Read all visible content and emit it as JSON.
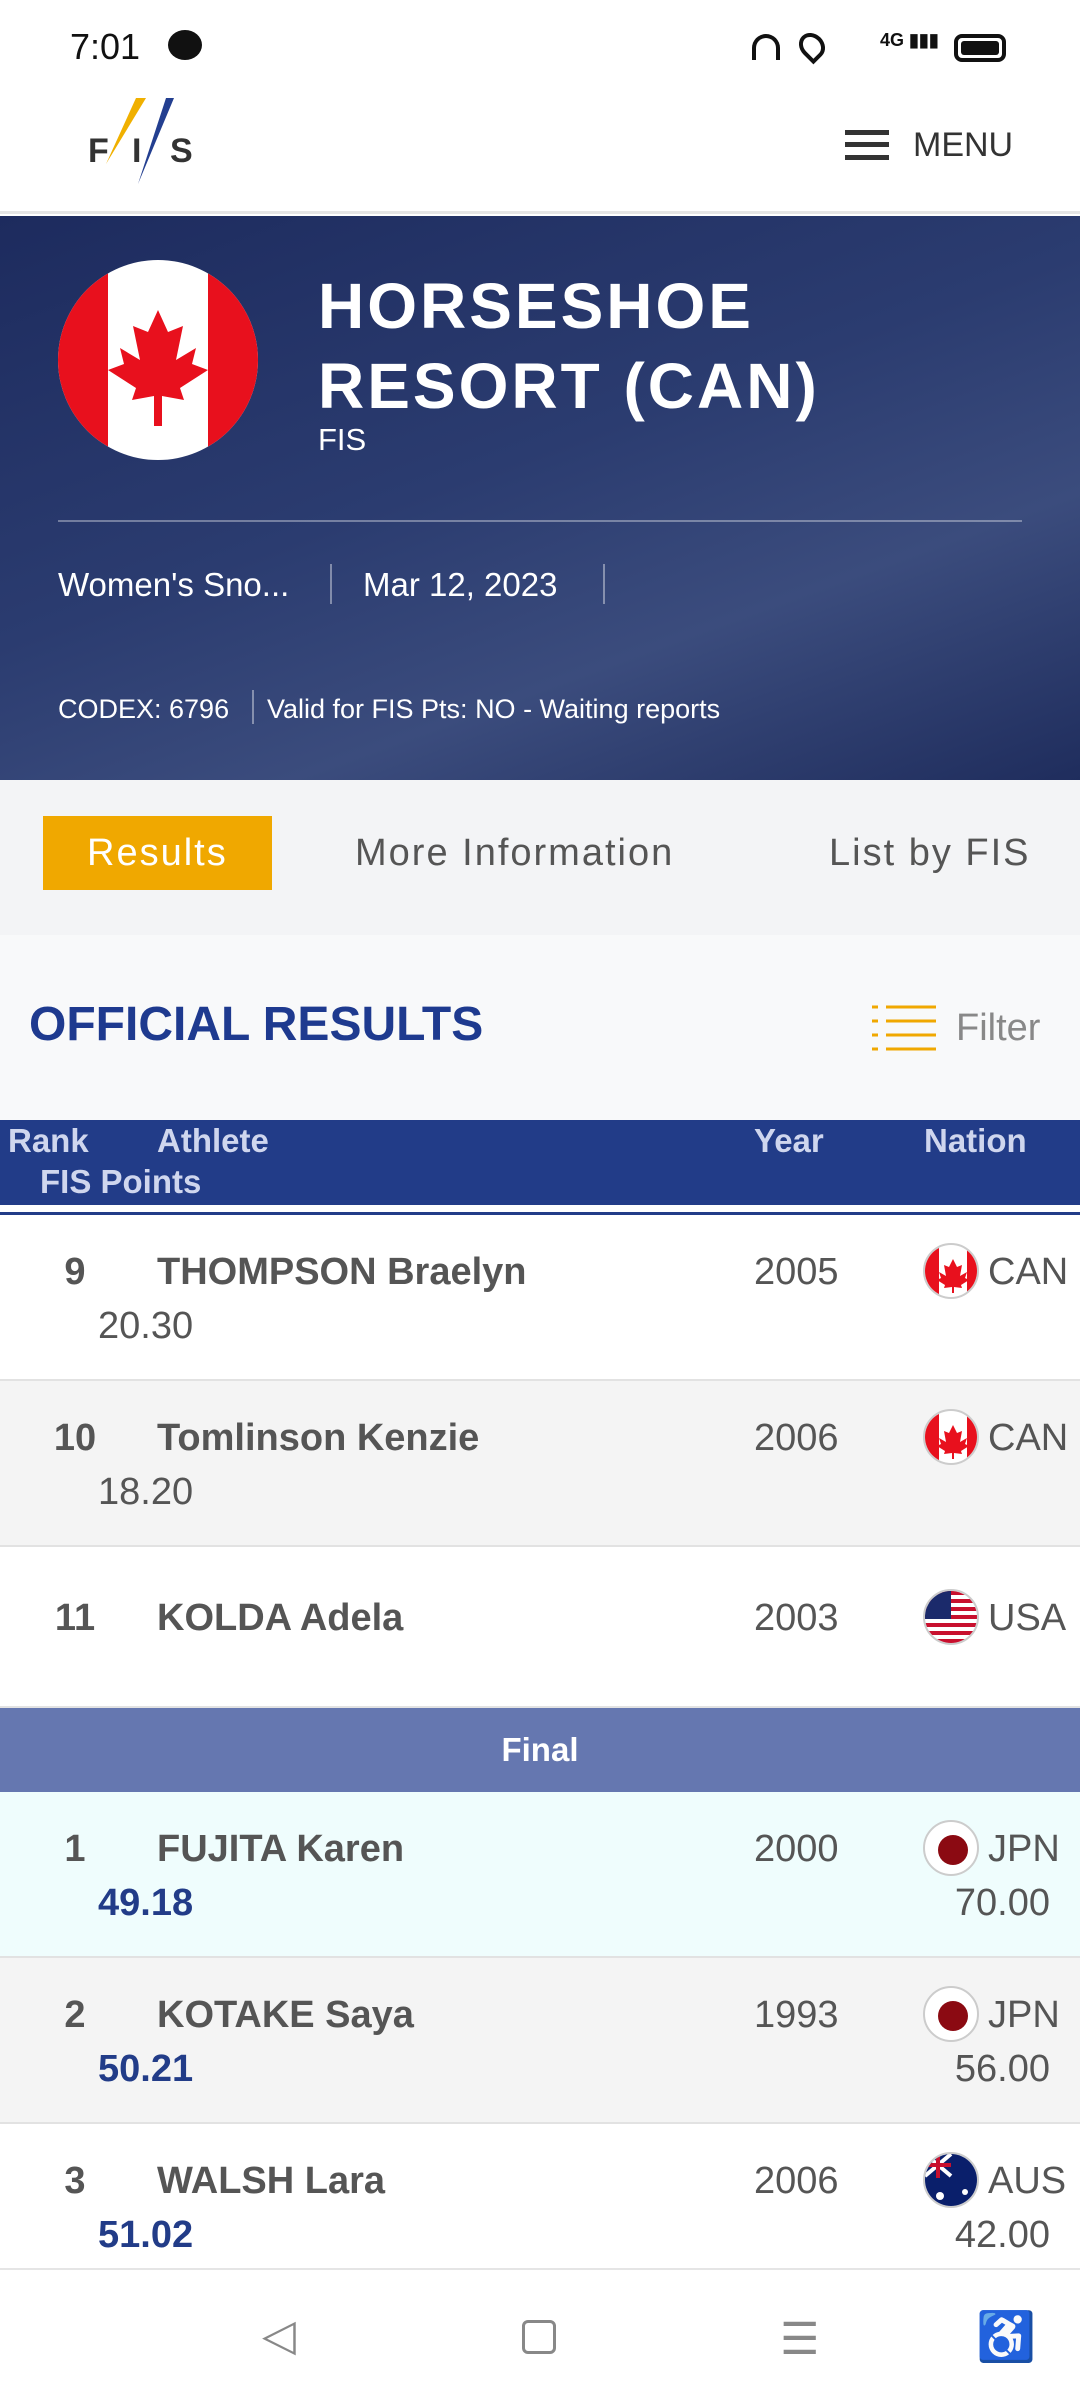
{
  "status": {
    "time": "7:01",
    "network": "4G"
  },
  "header": {
    "logo": "FIS",
    "menu_label": "MENU"
  },
  "hero": {
    "title_line1": "HORSESHOE",
    "title_line2": "RESORT (CAN)",
    "subtitle": "FIS",
    "discipline": "Women's Sno...",
    "date": "Mar 12, 2023",
    "codex": "CODEX: 6796",
    "validity": "Valid for FIS Pts: NO - Waiting reports"
  },
  "tabs": [
    {
      "label": "Results",
      "active": true
    },
    {
      "label": "More Information"
    },
    {
      "label": "List by FIS"
    }
  ],
  "results": {
    "heading": "OFFICIAL RESULTS",
    "filter_label": "Filter"
  },
  "table": {
    "headers": {
      "rank": "Rank",
      "athlete": "Athlete",
      "year": "Year",
      "nation": "Nation",
      "points": "FIS Points"
    },
    "rows": [
      {
        "rank": "9",
        "name": "THOMPSON Braelyn",
        "year": "2005",
        "nation": "CAN",
        "points": "20.30"
      },
      {
        "rank": "10",
        "name": "Tomlinson Kenzie",
        "year": "2006",
        "nation": "CAN",
        "points": "18.20"
      },
      {
        "rank": "11",
        "name": "KOLDA Adela",
        "year": "2003",
        "nation": "USA",
        "points": ""
      }
    ],
    "section": "Final",
    "final_rows": [
      {
        "rank": "1",
        "name": "FUJITA Karen",
        "year": "2000",
        "nation": "JPN",
        "points": "49.18",
        "score": "70.00"
      },
      {
        "rank": "2",
        "name": "KOTAKE Saya",
        "year": "1993",
        "nation": "JPN",
        "points": "50.21",
        "score": "56.00"
      },
      {
        "rank": "3",
        "name": "WALSH Lara",
        "year": "2006",
        "nation": "AUS",
        "points": "51.02",
        "score": "42.00"
      }
    ]
  },
  "colors": {
    "accent": "#f0a800",
    "primary": "#223c88",
    "highlight": "#effdfd"
  }
}
